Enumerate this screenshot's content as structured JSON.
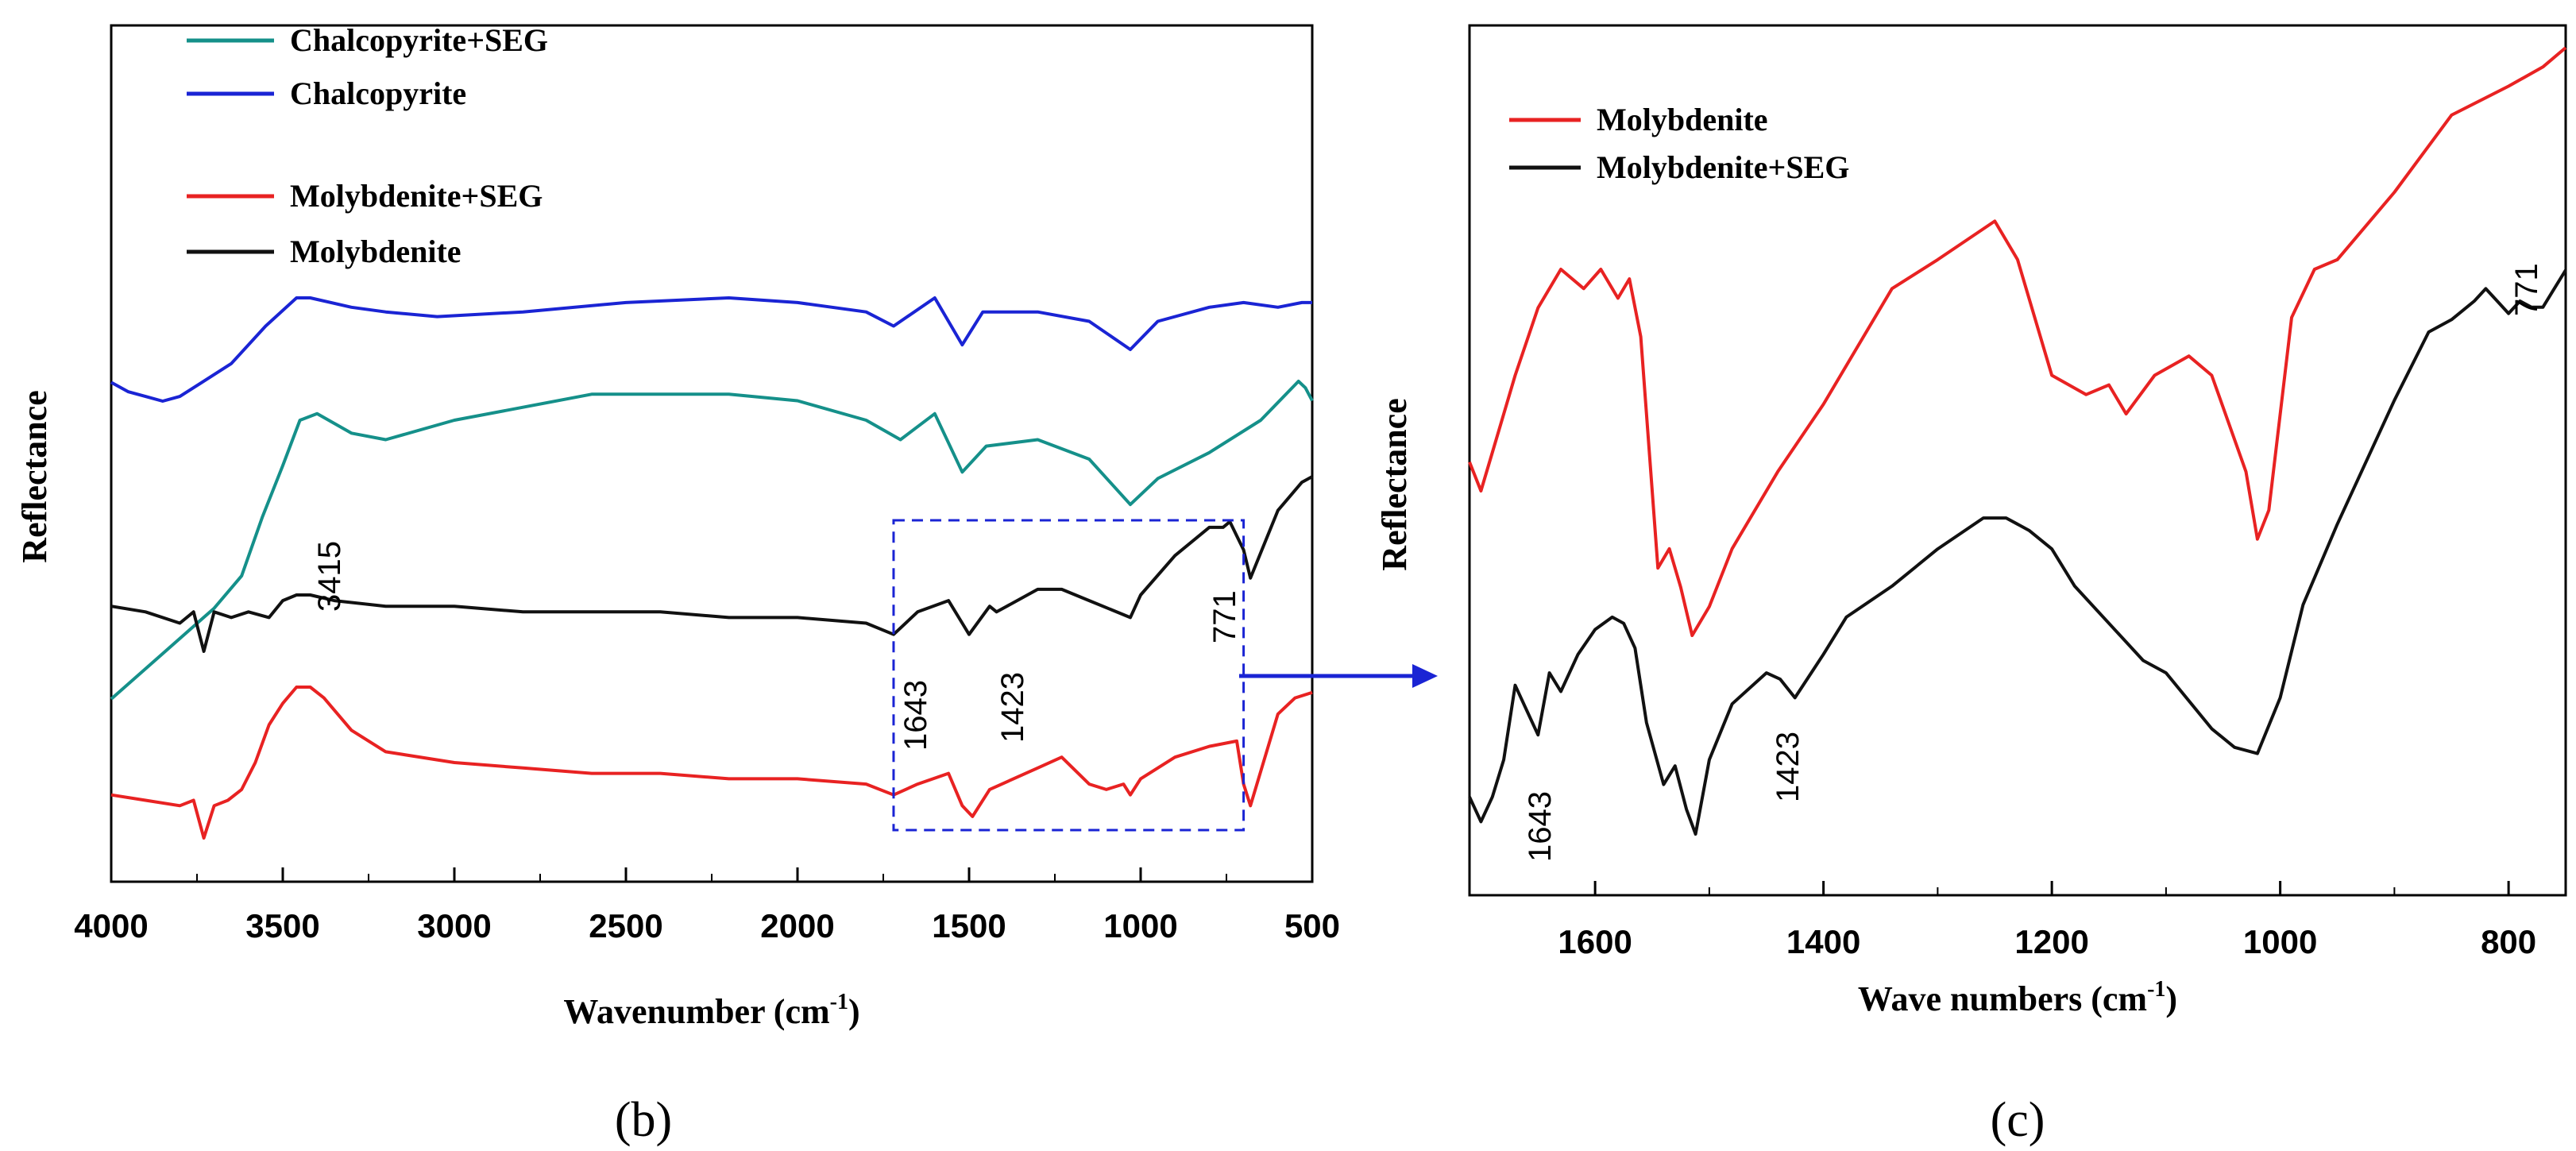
{
  "chart_data": [
    {
      "panel": "b",
      "type": "line",
      "xlabel": "Wavenumber (cm",
      "xlabel_sup": "-1",
      "xlabel_close": ")",
      "ylabel": "Reflectance",
      "xlim": [
        4000,
        500
      ],
      "ylim": [
        0,
        100
      ],
      "xticks": [
        4000,
        3500,
        3000,
        2500,
        2000,
        1500,
        1000,
        500
      ],
      "legend": [
        "Chalcopyrite+SEG",
        "Chalcopyrite",
        "Molybdenite+SEG",
        "Molybdenite"
      ],
      "annotations": [
        "3415",
        "1643",
        "1423",
        "771"
      ],
      "series": [
        {
          "name": "Chalcopyrite+SEG",
          "color": "#15908a",
          "x": [
            4000,
            3850,
            3700,
            3620,
            3560,
            3500,
            3450,
            3400,
            3300,
            3200,
            3000,
            2800,
            2600,
            2400,
            2200,
            2000,
            1800,
            1700,
            1600,
            1520,
            1450,
            1300,
            1150,
            1030,
            950,
            800,
            650,
            540,
            520,
            500
          ],
          "y": [
            20,
            27,
            34,
            39,
            48,
            56,
            63,
            64,
            61,
            60,
            63,
            65,
            67,
            67,
            67,
            66,
            63,
            60,
            64,
            55,
            59,
            60,
            57,
            50,
            54,
            58,
            63,
            69,
            68,
            66
          ]
        },
        {
          "name": "Chalcopyrite",
          "color": "#1a24d4",
          "x": [
            4000,
            3950,
            3900,
            3850,
            3800,
            3650,
            3550,
            3460,
            3420,
            3300,
            3200,
            3050,
            2800,
            2500,
            2200,
            2000,
            1800,
            1720,
            1600,
            1520,
            1460,
            1300,
            1150,
            1030,
            950,
            800,
            700,
            600,
            530,
            500
          ],
          "y": [
            74,
            72,
            71,
            70,
            71,
            78,
            86,
            92,
            92,
            90,
            89,
            88,
            89,
            91,
            92,
            91,
            89,
            86,
            92,
            82,
            89,
            89,
            87,
            81,
            87,
            90,
            91,
            90,
            91,
            91
          ]
        },
        {
          "name": "Molybdenite",
          "color": "#111111",
          "x": [
            4000,
            3900,
            3800,
            3760,
            3730,
            3700,
            3650,
            3600,
            3540,
            3500,
            3460,
            3420,
            3350,
            3200,
            3000,
            2800,
            2600,
            2400,
            2200,
            2000,
            1800,
            1720,
            1650,
            1560,
            1520,
            1500,
            1440,
            1420,
            1300,
            1230,
            1150,
            1030,
            1000,
            900,
            800,
            760,
            740,
            700,
            680,
            600,
            530,
            500
          ],
          "y": [
            35,
            34,
            32,
            34,
            27,
            34,
            33,
            34,
            33,
            36,
            37,
            37,
            36,
            35,
            35,
            34,
            34,
            34,
            33,
            33,
            32,
            30,
            34,
            36,
            32,
            30,
            35,
            34,
            38,
            38,
            36,
            33,
            37,
            44,
            49,
            49,
            50,
            45,
            40,
            52,
            57,
            58
          ]
        },
        {
          "name": "Molybdenite+SEG",
          "color": "#e82222",
          "x": [
            4000,
            3900,
            3800,
            3760,
            3730,
            3700,
            3660,
            3620,
            3580,
            3540,
            3500,
            3460,
            3420,
            3380,
            3300,
            3200,
            3000,
            2800,
            2600,
            2400,
            2200,
            2000,
            1800,
            1720,
            1650,
            1560,
            1520,
            1490,
            1440,
            1300,
            1230,
            1150,
            1100,
            1050,
            1030,
            1000,
            900,
            800,
            720,
            700,
            680,
            600,
            550,
            500
          ],
          "y": [
            10,
            9,
            8,
            9,
            2,
            8,
            9,
            11,
            16,
            23,
            27,
            30,
            30,
            28,
            22,
            18,
            16,
            15,
            14,
            14,
            13,
            13,
            12,
            10,
            12,
            14,
            8,
            6,
            11,
            15,
            17,
            12,
            11,
            12,
            10,
            13,
            17,
            19,
            20,
            12,
            8,
            25,
            28,
            29
          ]
        }
      ],
      "zoom_box": {
        "x": [
          1720,
          700
        ]
      }
    },
    {
      "panel": "c",
      "type": "line",
      "xlabel": "Wave numbers (cm",
      "xlabel_sup": "-1",
      "xlabel_close": ")",
      "ylabel": "Reflectance",
      "xlim": [
        1710,
        750
      ],
      "ylim": [
        0,
        100
      ],
      "xticks": [
        1600,
        1400,
        1200,
        1000,
        800
      ],
      "legend": [
        "Molybdenite",
        "Molybdenite+SEG"
      ],
      "annotations": [
        "1643",
        "1423",
        "771"
      ],
      "series": [
        {
          "name": "Molybdenite",
          "color": "#e82222",
          "x": [
            1710,
            1700,
            1690,
            1670,
            1650,
            1630,
            1610,
            1595,
            1580,
            1570,
            1560,
            1545,
            1535,
            1525,
            1515,
            1500,
            1480,
            1440,
            1400,
            1340,
            1300,
            1250,
            1230,
            1200,
            1170,
            1150,
            1135,
            1110,
            1080,
            1060,
            1030,
            1020,
            1010,
            990,
            970,
            950,
            900,
            850,
            800,
            770,
            750
          ],
          "y": [
            61,
            58,
            62,
            70,
            77,
            81,
            79,
            81,
            78,
            80,
            74,
            50,
            52,
            48,
            43,
            46,
            52,
            60,
            67,
            79,
            82,
            86,
            82,
            70,
            68,
            69,
            66,
            70,
            72,
            70,
            60,
            53,
            56,
            76,
            81,
            82,
            89,
            97,
            100,
            102,
            104
          ]
        },
        {
          "name": "Molybdenite+SEG",
          "color": "#111111",
          "x": [
            1710,
            1700,
            1690,
            1680,
            1670,
            1660,
            1650,
            1640,
            1630,
            1615,
            1600,
            1585,
            1575,
            1565,
            1555,
            1540,
            1530,
            1520,
            1512,
            1500,
            1480,
            1450,
            1438,
            1425,
            1400,
            1380,
            1340,
            1300,
            1260,
            1240,
            1220,
            1200,
            1180,
            1150,
            1120,
            1100,
            1060,
            1040,
            1020,
            1000,
            980,
            950,
            900,
            870,
            850,
            830,
            820,
            810,
            800,
            790,
            780,
            770,
            760,
            750
          ],
          "y": [
            4,
            0,
            4,
            10,
            22,
            18,
            14,
            24,
            21,
            27,
            31,
            33,
            32,
            28,
            16,
            6,
            9,
            2,
            -2,
            10,
            19,
            24,
            23,
            20,
            27,
            33,
            38,
            44,
            49,
            49,
            47,
            44,
            38,
            32,
            26,
            24,
            15,
            12,
            11,
            20,
            35,
            48,
            68,
            79,
            81,
            84,
            86,
            84,
            82,
            84,
            83,
            83,
            86,
            89
          ]
        }
      ]
    }
  ],
  "panel_labels": {
    "b": "(b)",
    "c": "(c)"
  }
}
